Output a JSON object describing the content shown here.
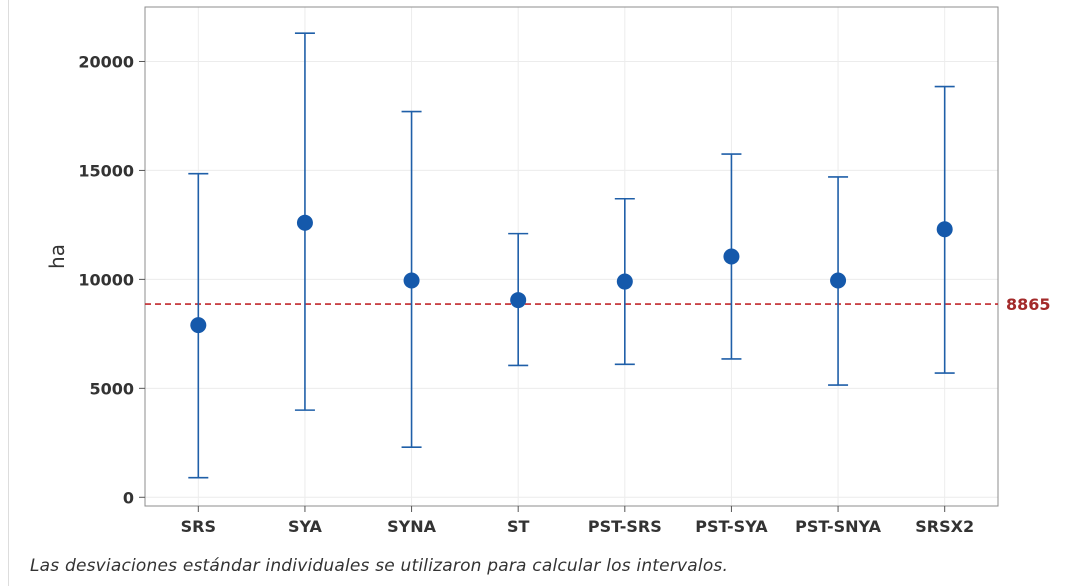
{
  "chart_data": {
    "type": "interval",
    "title": "",
    "xlabel": "",
    "ylabel": "ha",
    "ylim": [
      -400,
      22500
    ],
    "yticks": [
      0,
      5000,
      10000,
      15000,
      20000
    ],
    "categories": [
      "SRS",
      "SYA",
      "SYNA",
      "ST",
      "PST-SRS",
      "PST-SYA",
      "PST-SNYA",
      "SRSX2"
    ],
    "series": [
      {
        "mean": [
          7900,
          12600,
          9950,
          9050,
          9900,
          11050,
          9950,
          12300
        ],
        "lower": [
          900,
          4000,
          2300,
          6050,
          6100,
          6350,
          5150,
          5700
        ],
        "upper": [
          14850,
          21300,
          17700,
          12100,
          13700,
          15750,
          14700,
          18850
        ]
      }
    ],
    "reference_line": {
      "value": 8865,
      "label": "8865"
    },
    "grid": true,
    "colors": {
      "series": "#1f5fa8",
      "reference": "#c0282d",
      "grid": "#ececec",
      "frame": "#8c8c8c"
    }
  },
  "footnote": "Las desviaciones estándar individuales se utilizaron para calcular los intervalos."
}
